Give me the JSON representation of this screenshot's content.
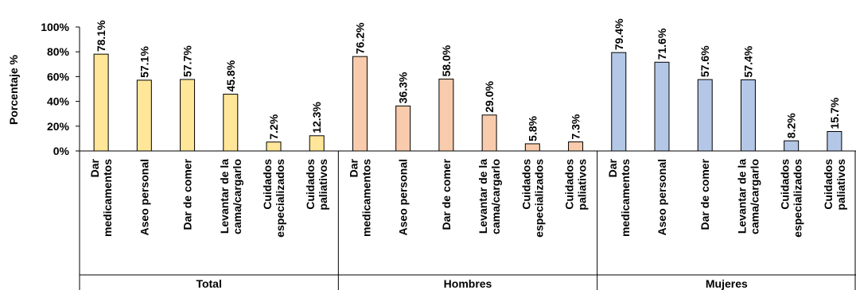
{
  "chart_data": {
    "type": "bar",
    "ylabel": "Porcentaje %",
    "ylim": [
      0,
      100
    ],
    "yticks": [
      "0%",
      "20%",
      "40%",
      "60%",
      "80%",
      "100%"
    ],
    "categories": [
      [
        "Dar",
        "medicamentos"
      ],
      [
        "Aseo personal"
      ],
      [
        "Dar de comer"
      ],
      [
        "Levantar de la",
        "cama/cargarlo"
      ],
      [
        "Cuidados",
        "especializados"
      ],
      [
        "Cuidados",
        "paliativos"
      ]
    ],
    "groups": [
      {
        "name": "Total",
        "color": "#FFE699",
        "values": [
          78.1,
          57.1,
          57.7,
          45.8,
          7.2,
          12.3
        ],
        "labels": [
          "78.1%",
          "57.1%",
          "57.7%",
          "45.8%",
          "7.2%",
          "12.3%"
        ]
      },
      {
        "name": "Hombres",
        "color": "#F8CBAD",
        "values": [
          76.2,
          36.3,
          58.0,
          29.0,
          5.8,
          7.3
        ],
        "labels": [
          "76.2%",
          "36.3%",
          "58.0%",
          "29.0%",
          "5.8%",
          "7.3%"
        ]
      },
      {
        "name": "Mujeres",
        "color": "#B4C7E7",
        "values": [
          79.4,
          71.6,
          57.6,
          57.4,
          8.2,
          15.7
        ],
        "labels": [
          "79.4%",
          "71.6%",
          "57.6%",
          "57.4%",
          "8.2%",
          "15.7%"
        ]
      }
    ],
    "grid": false,
    "legend": "none"
  }
}
